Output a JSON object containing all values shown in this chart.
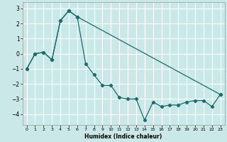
{
  "xlabel": "Humidex (Indice chaleur)",
  "bg_color": "#cbe8e8",
  "grid_color": "#ffffff",
  "line_color": "#1a6b6b",
  "lower_x": [
    0,
    1,
    2,
    3,
    4,
    5,
    6,
    7,
    8,
    9,
    10,
    11,
    12,
    13,
    14,
    15,
    16,
    17,
    18,
    19,
    20,
    21,
    22,
    23
  ],
  "lower_y": [
    -1.0,
    0.0,
    0.1,
    -0.4,
    2.2,
    2.85,
    2.45,
    -0.65,
    -1.4,
    -2.1,
    -2.1,
    -2.9,
    -3.0,
    -3.0,
    -4.4,
    -3.2,
    -3.5,
    -3.4,
    -3.4,
    -3.2,
    -3.1,
    -3.1,
    -3.5,
    -2.7
  ],
  "upper_x": [
    0,
    1,
    2,
    3,
    4,
    5,
    6,
    23
  ],
  "upper_y": [
    -1.0,
    0.0,
    0.1,
    -0.4,
    2.2,
    2.85,
    2.45,
    -2.7
  ],
  "xlim": [
    -0.5,
    23.5
  ],
  "ylim": [
    -4.7,
    3.4
  ],
  "yticks": [
    -4,
    -3,
    -2,
    -1,
    0,
    1,
    2,
    3
  ],
  "xticks": [
    0,
    1,
    2,
    3,
    4,
    5,
    6,
    7,
    8,
    9,
    10,
    11,
    12,
    13,
    14,
    15,
    16,
    17,
    18,
    19,
    20,
    21,
    22,
    23
  ],
  "xtick_labels": [
    "0",
    "1",
    "2",
    "3",
    "4",
    "5",
    "6",
    "7",
    "8",
    "9",
    "10",
    "11",
    "12",
    "13",
    "14",
    "15",
    "16",
    "17",
    "18",
    "19",
    "20",
    "21",
    "22",
    "23"
  ]
}
